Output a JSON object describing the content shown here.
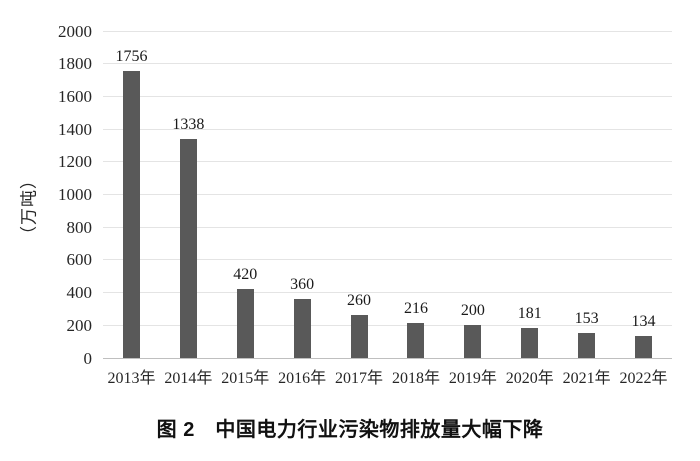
{
  "caption": "图 2　中国电力行业污染物排放量大幅下降",
  "chart_data": {
    "type": "bar",
    "title": "图 2 中国电力行业污染物排放量大幅下降",
    "categories": [
      "2013年",
      "2014年",
      "2015年",
      "2016年",
      "2017年",
      "2018年",
      "2019年",
      "2020年",
      "2021年",
      "2022年"
    ],
    "values": [
      1756,
      1338,
      420,
      360,
      260,
      216,
      200,
      181,
      153,
      134
    ],
    "xlabel": "",
    "ylabel": "（万吨）",
    "ylim": [
      0,
      2000
    ],
    "yticks": [
      0,
      200,
      400,
      600,
      800,
      1000,
      1200,
      1400,
      1600,
      1800,
      2000
    ],
    "grid": true,
    "legend": false,
    "data_labels": true,
    "bar_color": "#595959",
    "gridline_color": "#e4e4e4",
    "axis_line_color": "#bfbfbf",
    "label_color": "#1a1a1a"
  }
}
